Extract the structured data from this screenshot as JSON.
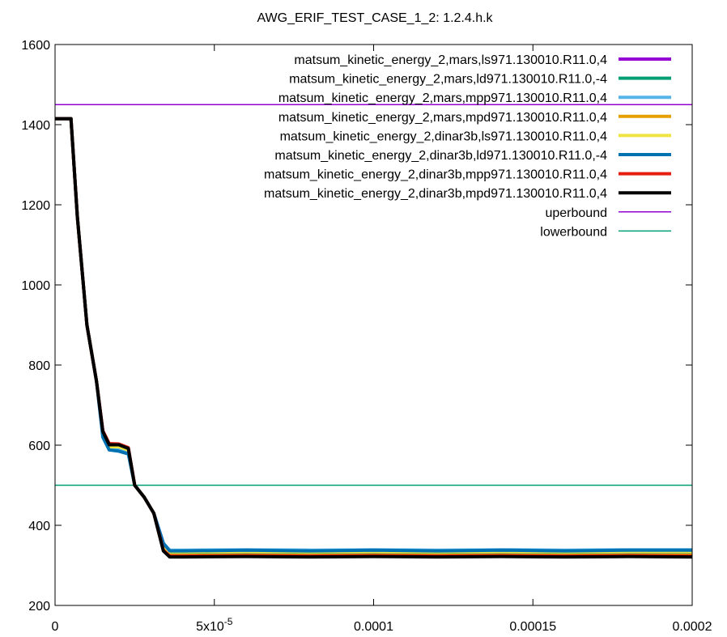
{
  "chart_data": {
    "type": "line",
    "title": "AWG_ERIF_TEST_CASE_1_2: 1.2.4.h.k",
    "xlabel": "",
    "ylabel": "",
    "xlim": [
      0,
      0.0002
    ],
    "ylim": [
      200,
      1600
    ],
    "x_ticks": [
      {
        "value": 0,
        "label": "0"
      },
      {
        "value": 5e-05,
        "label": "5x10",
        "sup": "-5"
      },
      {
        "value": 0.0001,
        "label": "0.0001"
      },
      {
        "value": 0.00015,
        "label": "0.00015"
      },
      {
        "value": 0.0002,
        "label": "0.0002"
      }
    ],
    "y_ticks": [
      {
        "value": 200,
        "label": "200"
      },
      {
        "value": 400,
        "label": "400"
      },
      {
        "value": 600,
        "label": "600"
      },
      {
        "value": 800,
        "label": "800"
      },
      {
        "value": 1000,
        "label": "1000"
      },
      {
        "value": 1200,
        "label": "1200"
      },
      {
        "value": 1400,
        "label": "1400"
      },
      {
        "value": 1600,
        "label": "1600"
      }
    ],
    "grid": false,
    "legend_position": "top-right",
    "series": [
      {
        "name": "matsum_kinetic_energy_2,mars,ls971.130010.R11.0,4",
        "color": "#9400d3",
        "x": [
          0,
          5e-06,
          7e-06,
          1e-05,
          1.3e-05,
          1.5e-05,
          1.7e-05,
          2e-05,
          2.3e-05,
          2.5e-05,
          2.8e-05,
          3.1e-05,
          3.4e-05,
          3.6e-05,
          4e-05,
          6e-05,
          8e-05,
          0.0001,
          0.00012,
          0.00014,
          0.00016,
          0.00018,
          0.0002
        ],
        "y": [
          1415,
          1415,
          1170,
          900,
          760,
          635,
          600,
          600,
          590,
          500,
          470,
          430,
          355,
          335,
          335,
          336,
          335,
          336,
          335,
          336,
          335,
          336,
          336
        ]
      },
      {
        "name": "matsum_kinetic_energy_2,mars,ld971.130010.R11.0,-4",
        "color": "#009e73",
        "x": [
          0,
          5e-06,
          7e-06,
          1e-05,
          1.3e-05,
          1.5e-05,
          1.7e-05,
          2e-05,
          2.3e-05,
          2.5e-05,
          2.8e-05,
          3.1e-05,
          3.4e-05,
          3.6e-05,
          4e-05,
          6e-05,
          8e-05,
          0.0001,
          0.00012,
          0.00014,
          0.00016,
          0.00018,
          0.0002
        ],
        "y": [
          1415,
          1415,
          1170,
          900,
          760,
          630,
          595,
          596,
          588,
          500,
          470,
          430,
          352,
          333,
          333,
          334,
          333,
          334,
          333,
          334,
          333,
          334,
          334
        ]
      },
      {
        "name": "matsum_kinetic_energy_2,mars,mpp971.130010.R11.0,4",
        "color": "#56b4e9",
        "x": [
          0,
          5e-06,
          7e-06,
          1e-05,
          1.3e-05,
          1.5e-05,
          1.7e-05,
          2e-05,
          2.3e-05,
          2.5e-05,
          2.8e-05,
          3.1e-05,
          3.4e-05,
          3.6e-05,
          4e-05,
          6e-05,
          8e-05,
          0.0001,
          0.00012,
          0.00014,
          0.00016,
          0.00018,
          0.0002
        ],
        "y": [
          1415,
          1415,
          1170,
          900,
          760,
          625,
          590,
          588,
          582,
          500,
          470,
          430,
          355,
          338,
          338,
          339,
          338,
          339,
          338,
          339,
          338,
          339,
          339
        ]
      },
      {
        "name": "matsum_kinetic_energy_2,mars,mpd971.130010.R11.0,4",
        "color": "#e69f00",
        "x": [
          0,
          5e-06,
          7e-06,
          1e-05,
          1.3e-05,
          1.5e-05,
          1.7e-05,
          2e-05,
          2.3e-05,
          2.5e-05,
          2.8e-05,
          3.1e-05,
          3.4e-05,
          3.6e-05,
          4e-05,
          6e-05,
          8e-05,
          0.0001,
          0.00012,
          0.00014,
          0.00016,
          0.00018,
          0.0002
        ],
        "y": [
          1415,
          1415,
          1170,
          900,
          760,
          632,
          598,
          598,
          589,
          500,
          470,
          430,
          345,
          325,
          325,
          326,
          325,
          326,
          325,
          326,
          325,
          326,
          326
        ]
      },
      {
        "name": "matsum_kinetic_energy_2,dinar3b,ls971.130010.R11.0,4",
        "color": "#f0e442",
        "x": [
          0,
          5e-06,
          7e-06,
          1e-05,
          1.3e-05,
          1.5e-05,
          1.7e-05,
          2e-05,
          2.3e-05,
          2.5e-05,
          2.8e-05,
          3.1e-05,
          3.4e-05,
          3.6e-05,
          4e-05,
          6e-05,
          8e-05,
          0.0001,
          0.00012,
          0.00014,
          0.00016,
          0.00018,
          0.0002
        ],
        "y": [
          1415,
          1415,
          1170,
          900,
          760,
          630,
          596,
          596,
          588,
          500,
          470,
          430,
          350,
          334,
          334,
          335,
          334,
          335,
          334,
          335,
          334,
          335,
          335
        ]
      },
      {
        "name": "matsum_kinetic_energy_2,dinar3b,ld971.130010.R11.0,-4",
        "color": "#0072b2",
        "x": [
          0,
          5e-06,
          7e-06,
          1e-05,
          1.3e-05,
          1.5e-05,
          1.7e-05,
          2e-05,
          2.3e-05,
          2.5e-05,
          2.8e-05,
          3.1e-05,
          3.4e-05,
          3.6e-05,
          4e-05,
          6e-05,
          8e-05,
          0.0001,
          0.00012,
          0.00014,
          0.00016,
          0.00018,
          0.0002
        ],
        "y": [
          1415,
          1415,
          1170,
          900,
          760,
          620,
          588,
          585,
          578,
          500,
          470,
          430,
          355,
          336,
          336,
          338,
          336,
          338,
          336,
          338,
          336,
          338,
          338
        ]
      },
      {
        "name": "matsum_kinetic_energy_2,dinar3b,mpp971.130010.R11.0,4",
        "color": "#e51e10",
        "x": [
          0,
          5e-06,
          7e-06,
          1e-05,
          1.3e-05,
          1.5e-05,
          1.7e-05,
          2e-05,
          2.3e-05,
          2.5e-05,
          2.8e-05,
          3.1e-05,
          3.4e-05,
          3.6e-05,
          4e-05,
          6e-05,
          8e-05,
          0.0001,
          0.00012,
          0.00014,
          0.00016,
          0.00018,
          0.0002
        ],
        "y": [
          1415,
          1415,
          1170,
          900,
          760,
          636,
          604,
          603,
          594,
          500,
          470,
          430,
          338,
          323,
          323,
          324,
          323,
          324,
          323,
          324,
          323,
          324,
          323
        ]
      },
      {
        "name": "matsum_kinetic_energy_2,dinar3b,mpd971.130010.R11.0,4",
        "color": "#000000",
        "x": [
          0,
          5e-06,
          7e-06,
          1e-05,
          1.3e-05,
          1.5e-05,
          1.7e-05,
          2e-05,
          2.3e-05,
          2.5e-05,
          2.8e-05,
          3.1e-05,
          3.4e-05,
          3.6e-05,
          4e-05,
          6e-05,
          8e-05,
          0.0001,
          0.00012,
          0.00014,
          0.00016,
          0.00018,
          0.0002
        ],
        "y": [
          1415,
          1415,
          1170,
          900,
          760,
          634,
          601,
          601,
          592,
          500,
          470,
          430,
          336,
          321,
          321,
          322,
          321,
          322,
          321,
          322,
          321,
          322,
          321
        ]
      }
    ],
    "reference_lines": [
      {
        "name": "uperbound",
        "color": "#9400d3",
        "y": 1450
      },
      {
        "name": "lowerbound",
        "color": "#009e73",
        "y": 500
      }
    ]
  }
}
